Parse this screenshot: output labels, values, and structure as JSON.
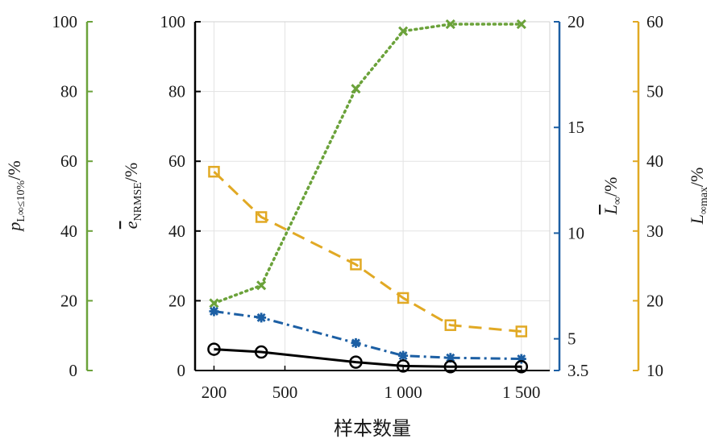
{
  "chart_data": {
    "type": "line",
    "xlabel": "样本数量",
    "x_ticks": [
      200,
      500,
      1000,
      1500
    ],
    "x_tick_labels": [
      "200",
      "500",
      "1 000",
      "1 500"
    ],
    "xlim": [
      120,
      1620
    ],
    "grid": true,
    "axes": [
      {
        "id": "p",
        "label_main": "p",
        "label_sub": "L∞≤10%",
        "label_unit": "/%",
        "color": "#6ba23a",
        "ylim": [
          0,
          100
        ],
        "ticks": [
          0,
          20,
          40,
          60,
          80,
          100
        ],
        "tick_labels": [
          "0",
          "20",
          "40",
          "60",
          "80",
          "100"
        ]
      },
      {
        "id": "e",
        "label_main": "e",
        "label_sub": "NRMSE",
        "label_unit": "/%",
        "color": "#000000",
        "ylim": [
          0,
          100
        ],
        "ticks": [
          0,
          20,
          40,
          60,
          80,
          100
        ],
        "tick_labels": [
          "0",
          "20",
          "40",
          "60",
          "80",
          "100"
        ]
      },
      {
        "id": "L",
        "label_main": "L",
        "label_sub": "∞",
        "label_unit": "/%",
        "color": "#1c5fa4",
        "ylim": [
          3.5,
          20
        ],
        "ticks": [
          3.5,
          5,
          10,
          15,
          20
        ],
        "tick_labels": [
          "3.5",
          "5",
          "10",
          "15",
          "20"
        ]
      },
      {
        "id": "Lmax",
        "label_main": "L",
        "label_sub": "∞max",
        "label_unit": "/%",
        "color": "#e1a924",
        "ylim": [
          10,
          60
        ],
        "ticks": [
          10,
          20,
          30,
          40,
          50,
          60
        ],
        "tick_labels": [
          "10",
          "20",
          "30",
          "40",
          "50",
          "60"
        ]
      }
    ],
    "series": [
      {
        "axis": "p",
        "color": "#6ba23a",
        "line": "dotted",
        "marker": "x",
        "x": [
          200,
          400,
          800,
          1000,
          1200,
          1500
        ],
        "y": [
          19.3,
          24.4,
          80.8,
          97.3,
          99.3,
          99.3
        ]
      },
      {
        "axis": "Lmax",
        "color": "#e1a924",
        "line": "dashed",
        "marker": "square",
        "x": [
          200,
          400,
          800,
          1000,
          1200,
          1500
        ],
        "y": [
          38.5,
          32.0,
          25.2,
          20.4,
          16.5,
          15.6
        ]
      },
      {
        "axis": "L",
        "color": "#1c5fa4",
        "line": "dashdot",
        "marker": "star",
        "x": [
          200,
          400,
          800,
          1000,
          1200,
          1500
        ],
        "y": [
          6.3,
          6.0,
          4.8,
          4.2,
          4.1,
          4.05
        ]
      },
      {
        "axis": "e",
        "color": "#000000",
        "line": "solid",
        "marker": "circle",
        "x": [
          200,
          400,
          800,
          1000,
          1200,
          1500
        ],
        "y": [
          6.1,
          5.3,
          2.4,
          1.3,
          1.1,
          1.1
        ]
      }
    ]
  }
}
